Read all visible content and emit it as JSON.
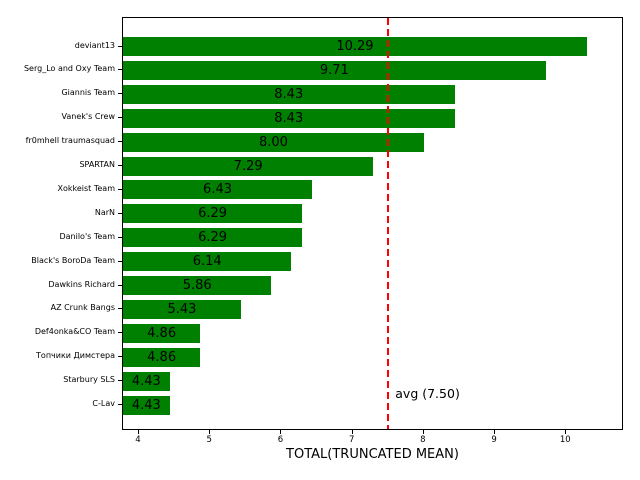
{
  "chart_data": {
    "type": "bar",
    "orientation": "horizontal",
    "title": "",
    "xlabel": "TOTAL(TRUNCATED MEAN)",
    "ylabel": "",
    "categories": [
      "deviant13",
      "Serg_Lo and Oxy Team",
      "Giannis Team",
      "Vanek's Crew",
      "fr0mhell traumasquad",
      "SPARTAN",
      "Xokkeist Team",
      "NarN",
      "Danilo's Team",
      "Black's BoroDa Team",
      "Dawkins Richard",
      "AZ Crunk Bangs",
      "Def4onka&CO Team",
      "Топчики Димстера",
      "Starbury SLS",
      "C-Lav"
    ],
    "values": [
      10.29,
      9.71,
      8.43,
      8.43,
      8.0,
      7.29,
      6.43,
      6.29,
      6.29,
      6.14,
      5.86,
      5.43,
      4.86,
      4.86,
      4.43,
      4.43
    ],
    "value_labels": [
      "10.29",
      "9.71",
      "8.43",
      "8.43",
      "8.00",
      "7.29",
      "6.43",
      "6.29",
      "6.29",
      "6.14",
      "5.86",
      "5.43",
      "4.86",
      "4.86",
      "4.43",
      "4.43"
    ],
    "x_ticks": [
      "4",
      "5",
      "6",
      "7",
      "8",
      "9",
      "10"
    ],
    "x_tick_values": [
      4,
      5,
      6,
      7,
      8,
      9,
      10
    ],
    "xlim": [
      3.775,
      10.81
    ],
    "bar_color": "#008000",
    "grid": false,
    "legend": null,
    "avg_line": {
      "value": 7.5,
      "label": "avg (7.50)",
      "color": "#ff0000",
      "style": "dashed"
    }
  }
}
